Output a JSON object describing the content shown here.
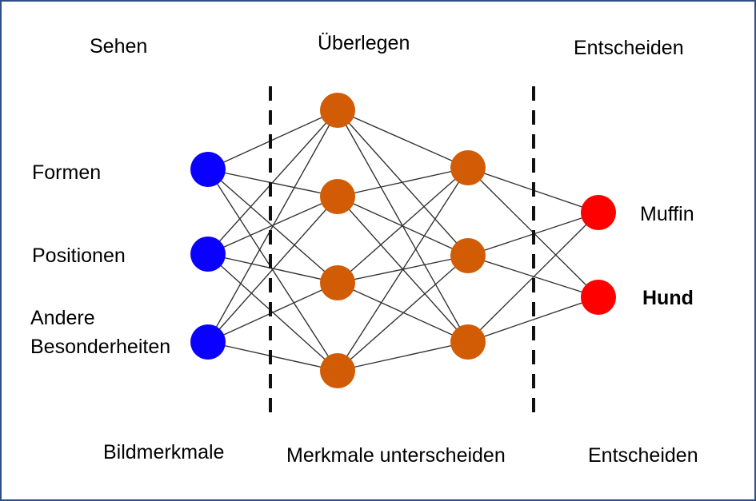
{
  "stage_headers": {
    "see": "Sehen",
    "think": "Überlegen",
    "decide": "Entscheiden"
  },
  "input_labels": {
    "shapes": "Formen",
    "positions": "Positionen",
    "other_line1": "Andere",
    "other_line2": "Besonderheiten"
  },
  "output_labels": {
    "muffin": "Muffin",
    "dog": "Hund"
  },
  "footer_labels": {
    "image_features": "Bildmerkmale",
    "distinguish_features": "Merkmale unterscheiden",
    "decide": "Entscheiden"
  },
  "colors": {
    "input_node": "#0a00ff",
    "hidden_node": "#d25b05",
    "output_node": "#ff0000",
    "edge": "#333333",
    "divider": "#111111",
    "frame_border": "#2d4f86"
  }
}
